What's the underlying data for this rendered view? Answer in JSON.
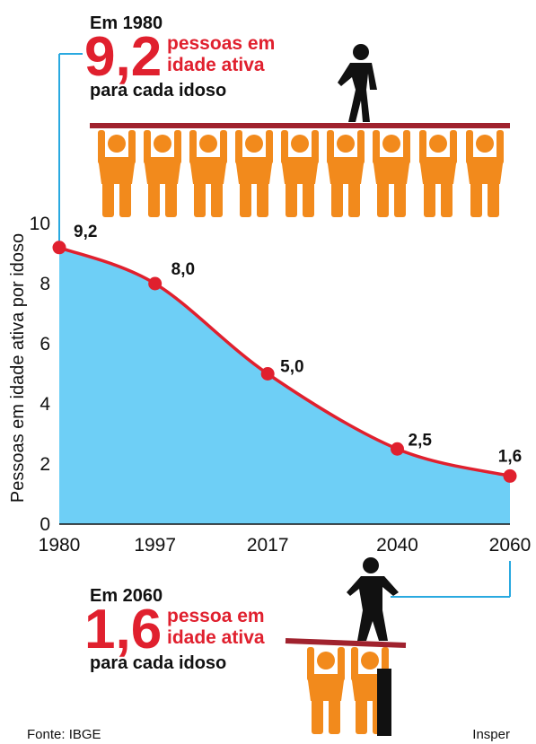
{
  "chart_data": {
    "type": "area",
    "y_label": "Pessoas em idade ativa por idoso",
    "x": [
      1980,
      1997,
      2017,
      2040,
      2060
    ],
    "series": [
      {
        "name": "Pessoas em idade ativa por idoso",
        "color": "#e0202e",
        "fill": "#6ecff6",
        "values": [
          9.2,
          8.0,
          5.0,
          2.5,
          1.6
        ],
        "value_labels": [
          "9,2",
          "8,0",
          "5,0",
          "2,5",
          "1,6"
        ]
      }
    ],
    "xlim": [
      1980,
      2060
    ],
    "xticks": [
      1980,
      1997,
      2017,
      2040,
      2060
    ],
    "ylim": [
      0,
      10
    ],
    "yticks": [
      0,
      2,
      4,
      6,
      8,
      10
    ],
    "annotations": {
      "top": {
        "heading": "Em 1980",
        "number": "9,2",
        "line1": "pessoas em",
        "line2": "idade ativa",
        "line3": "para cada idoso"
      },
      "bottom": {
        "heading": "Em 2060",
        "number": "1,6",
        "line1": "pessoa em",
        "line2": "idade ativa",
        "line3": "para cada idoso"
      }
    },
    "source": "Fonte: IBGE",
    "credit": "Insper"
  }
}
